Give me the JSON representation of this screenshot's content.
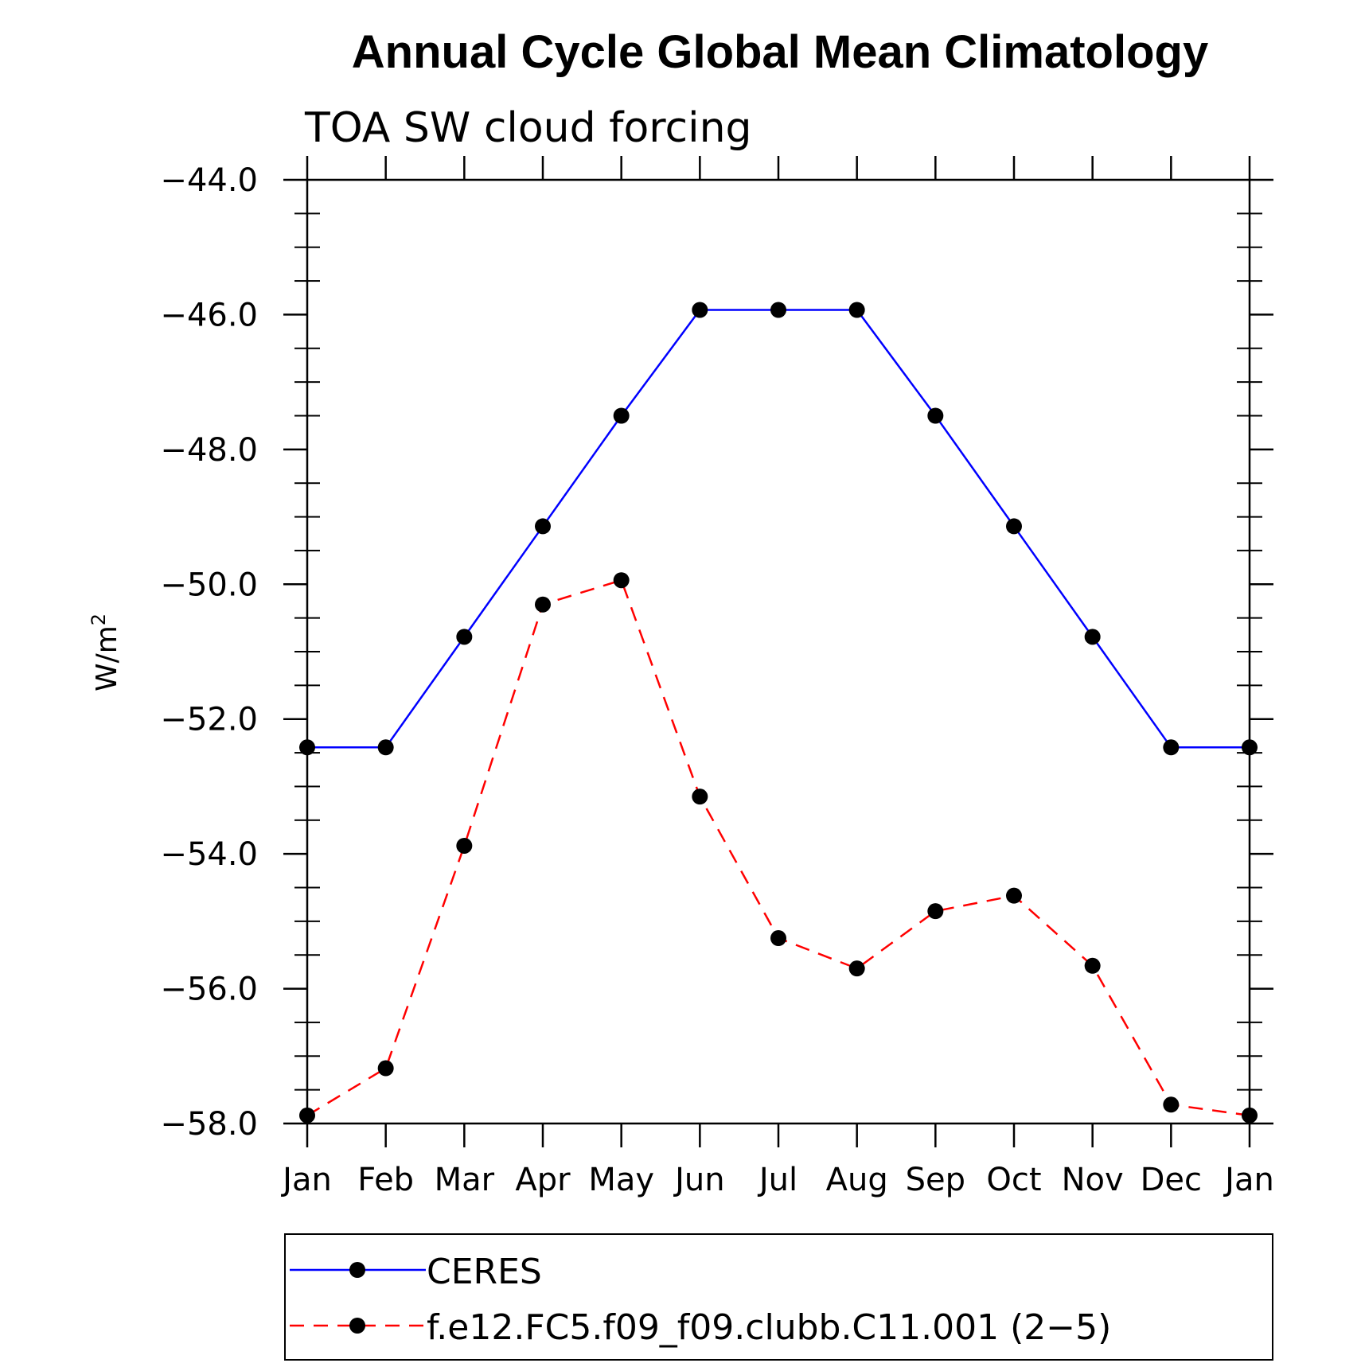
{
  "chart_data": {
    "type": "line",
    "title": "Annual Cycle Global Mean Climatology",
    "subtitle": "TOA SW cloud forcing",
    "ylabel": "W/m",
    "ylabel_superscript": "2",
    "xlabel": "",
    "categories": [
      "Jan",
      "Feb",
      "Mar",
      "Apr",
      "May",
      "Jun",
      "Jul",
      "Aug",
      "Sep",
      "Oct",
      "Nov",
      "Dec",
      "Jan"
    ],
    "ylim": [
      -58.0,
      -44.0
    ],
    "yticks": [
      -44.0,
      -46.0,
      -48.0,
      -50.0,
      -52.0,
      -54.0,
      -56.0,
      -58.0
    ],
    "ytick_labels": [
      "−44.0",
      "−46.0",
      "−48.0",
      "−50.0",
      "−52.0",
      "−54.0",
      "−56.0",
      "−58.0"
    ],
    "grid": false,
    "legend_position": "bottom, below plot",
    "series": [
      {
        "name": "CERES",
        "color": "#0000ff",
        "line_style": "solid",
        "marker": "filled-circle",
        "marker_color": "#000000",
        "values": [
          -52.42,
          -52.42,
          -50.78,
          -49.14,
          -47.5,
          -45.93,
          -45.93,
          -45.93,
          -47.5,
          -49.14,
          -50.78,
          -52.42,
          -52.42
        ]
      },
      {
        "name": "f.e12.FC5.f09_f09.clubb.C11.001 (2−5)",
        "color": "#ff0000",
        "line_style": "dashed",
        "marker": "filled-circle",
        "marker_color": "#000000",
        "values": [
          -57.88,
          -57.18,
          -53.88,
          -50.3,
          -49.94,
          -53.15,
          -55.25,
          -55.7,
          -54.85,
          -54.62,
          -55.66,
          -57.72,
          -57.88
        ]
      }
    ]
  }
}
